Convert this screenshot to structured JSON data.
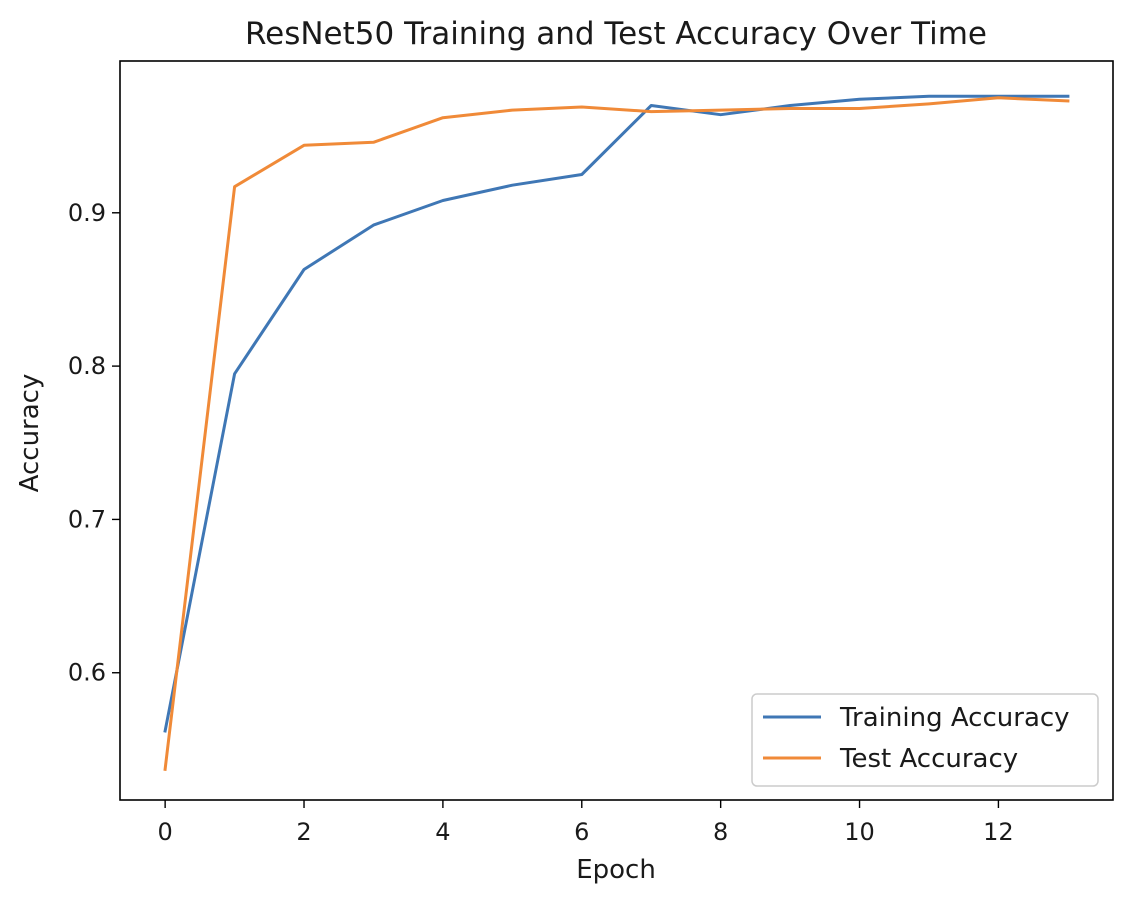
{
  "chart_data": {
    "type": "line",
    "title": "ResNet50 Training and Test Accuracy Over Time",
    "xlabel": "Epoch",
    "ylabel": "Accuracy",
    "x": [
      0,
      1,
      2,
      3,
      4,
      5,
      6,
      7,
      8,
      9,
      10,
      11,
      12,
      13
    ],
    "xlim": [
      -0.65,
      13.65
    ],
    "ylim": [
      0.517,
      0.999
    ],
    "xticks": [
      0,
      2,
      4,
      6,
      8,
      10,
      12
    ],
    "xtick_labels": [
      "0",
      "2",
      "4",
      "6",
      "8",
      "10",
      "12"
    ],
    "yticks": [
      0.6,
      0.7,
      0.8,
      0.9
    ],
    "ytick_labels": [
      "0.6",
      "0.7",
      "0.8",
      "0.9"
    ],
    "grid": false,
    "legend_position": "lower-right",
    "series": [
      {
        "name": "Training Accuracy",
        "color": "#3f77b5",
        "values": [
          0.562,
          0.795,
          0.863,
          0.892,
          0.908,
          0.918,
          0.925,
          0.97,
          0.964,
          0.97,
          0.974,
          0.976,
          0.976,
          0.976
        ]
      },
      {
        "name": "Test Accuracy",
        "color": "#f08a38",
        "values": [
          0.537,
          0.917,
          0.944,
          0.946,
          0.962,
          0.967,
          0.969,
          0.966,
          0.967,
          0.968,
          0.968,
          0.971,
          0.975,
          0.973
        ]
      }
    ]
  }
}
